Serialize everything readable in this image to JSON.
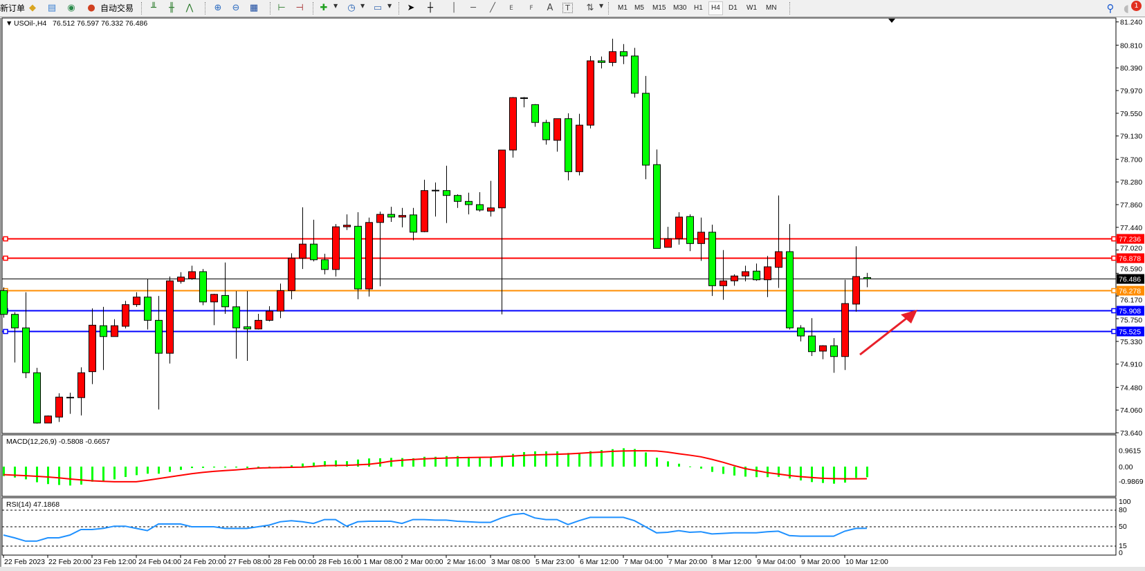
{
  "toolbar": {
    "new_order": "新订单",
    "auto_trade": "自动交易",
    "timeframes": [
      "M1",
      "M5",
      "M15",
      "M30",
      "H1",
      "H4",
      "D1",
      "W1",
      "MN"
    ],
    "active_timeframe": "H4",
    "notification_count": "1",
    "tools": {
      "text": "A",
      "fibo_e": "E",
      "fibo_f": "F",
      "label_t": "T"
    }
  },
  "chart": {
    "symbol_label": "USOil-,H4",
    "ohlc_label": "76.512 76.597 76.332 76.486",
    "price_ticks": [
      "81.240",
      "80.810",
      "80.390",
      "79.970",
      "79.550",
      "79.130",
      "78.700",
      "78.280",
      "77.860",
      "77.440",
      "77.020",
      "76.590",
      "76.170",
      "75.750",
      "75.330",
      "74.910",
      "74.480",
      "74.060",
      "73.640"
    ],
    "levels": [
      {
        "value": "77.236",
        "color": "#ff0000"
      },
      {
        "value": "76.878",
        "color": "#ff0000"
      },
      {
        "value": "76.486",
        "color": "#000000"
      },
      {
        "value": "76.278",
        "color": "#ff8c00"
      },
      {
        "value": "75.908",
        "color": "#0000ff"
      },
      {
        "value": "75.525",
        "color": "#0000ff"
      }
    ],
    "time_labels": [
      "22 Feb 2023",
      "22 Feb 20:00",
      "23 Feb 12:00",
      "24 Feb 04:00",
      "24 Feb 20:00",
      "27 Feb 08:00",
      "28 Feb 00:00",
      "28 Feb 16:00",
      "1 Mar 08:00",
      "2 Mar 00:00",
      "2 Mar 16:00",
      "3 Mar 08:00",
      "5 Mar 23:00",
      "6 Mar 12:00",
      "7 Mar 04:00",
      "7 Mar 20:00",
      "8 Mar 12:00",
      "9 Mar 04:00",
      "9 Mar 20:00",
      "10 Mar 12:00"
    ],
    "arrow_color": "#e8202a"
  },
  "chart_data": {
    "type": "candlestick",
    "ylim": [
      73.64,
      81.24
    ],
    "bull_color": "#ff0000",
    "bear_color": "#00ff00",
    "candles": [
      [
        76.27,
        76.33,
        75.77,
        75.83
      ],
      [
        75.83,
        75.87,
        74.94,
        75.58
      ],
      [
        75.58,
        76.24,
        74.65,
        74.75
      ],
      [
        74.75,
        74.84,
        73.81,
        73.82
      ],
      [
        73.82,
        73.96,
        73.82,
        73.95
      ],
      [
        73.93,
        74.37,
        73.84,
        74.3
      ],
      [
        74.29,
        74.38,
        73.99,
        74.29
      ],
      [
        74.29,
        74.85,
        73.96,
        74.75
      ],
      [
        74.77,
        75.94,
        74.54,
        75.63
      ],
      [
        75.62,
        75.97,
        74.8,
        75.42
      ],
      [
        75.42,
        75.74,
        75.42,
        75.62
      ],
      [
        75.61,
        76.08,
        75.57,
        76.01
      ],
      [
        76.01,
        76.24,
        75.97,
        76.15
      ],
      [
        76.15,
        76.49,
        75.55,
        75.72
      ],
      [
        75.72,
        76.17,
        74.07,
        75.11
      ],
      [
        75.11,
        76.53,
        74.92,
        76.45
      ],
      [
        76.44,
        76.61,
        76.4,
        76.52
      ],
      [
        76.49,
        76.73,
        76.47,
        76.62
      ],
      [
        76.62,
        76.67,
        76.0,
        76.06
      ],
      [
        76.06,
        76.21,
        75.63,
        76.2
      ],
      [
        76.18,
        76.79,
        75.84,
        75.97
      ],
      [
        75.97,
        76.26,
        75.01,
        75.58
      ],
      [
        75.6,
        76.26,
        74.97,
        75.56
      ],
      [
        75.56,
        75.84,
        75.55,
        75.72
      ],
      [
        75.72,
        75.98,
        75.7,
        75.89
      ],
      [
        75.89,
        76.4,
        75.76,
        76.27
      ],
      [
        76.27,
        76.96,
        76.11,
        76.87
      ],
      [
        76.87,
        77.81,
        76.67,
        77.13
      ],
      [
        77.13,
        77.58,
        76.81,
        76.84
      ],
      [
        76.84,
        76.95,
        76.57,
        76.66
      ],
      [
        76.66,
        77.5,
        76.53,
        77.45
      ],
      [
        77.45,
        77.68,
        77.39,
        77.48
      ],
      [
        77.46,
        77.72,
        76.11,
        76.3
      ],
      [
        76.3,
        77.62,
        76.16,
        77.53
      ],
      [
        77.53,
        77.73,
        76.35,
        77.68
      ],
      [
        77.68,
        77.82,
        77.54,
        77.63
      ],
      [
        77.63,
        77.8,
        77.44,
        77.66
      ],
      [
        77.67,
        77.8,
        77.2,
        77.35
      ],
      [
        77.36,
        78.32,
        77.35,
        78.12
      ],
      [
        78.12,
        78.27,
        77.64,
        78.12
      ],
      [
        78.12,
        78.58,
        77.52,
        78.03
      ],
      [
        78.03,
        78.05,
        77.8,
        77.92
      ],
      [
        77.92,
        78.08,
        77.68,
        77.86
      ],
      [
        77.86,
        78.09,
        77.73,
        77.76
      ],
      [
        77.74,
        78.3,
        77.64,
        77.8
      ],
      [
        77.8,
        78.87,
        75.83,
        78.87
      ],
      [
        78.87,
        79.85,
        78.73,
        79.84
      ],
      [
        79.83,
        79.85,
        79.66,
        79.83
      ],
      [
        79.71,
        79.72,
        79.3,
        79.38
      ],
      [
        79.38,
        79.43,
        78.97,
        79.06
      ],
      [
        79.05,
        79.45,
        78.84,
        79.45
      ],
      [
        79.45,
        79.55,
        78.31,
        78.47
      ],
      [
        78.47,
        79.54,
        78.4,
        79.33
      ],
      [
        79.33,
        80.61,
        79.27,
        80.52
      ],
      [
        80.52,
        80.6,
        80.38,
        80.49
      ],
      [
        80.49,
        80.93,
        80.42,
        80.69
      ],
      [
        80.69,
        80.83,
        80.46,
        80.61
      ],
      [
        80.61,
        80.76,
        79.84,
        79.92
      ],
      [
        79.92,
        80.24,
        78.33,
        78.59
      ],
      [
        78.6,
        78.88,
        77.05,
        77.05
      ],
      [
        77.07,
        77.45,
        77.07,
        77.23
      ],
      [
        77.23,
        77.72,
        77.12,
        77.63
      ],
      [
        77.64,
        77.68,
        77.0,
        77.14
      ],
      [
        77.14,
        77.62,
        76.82,
        77.35
      ],
      [
        77.35,
        77.49,
        76.17,
        76.36
      ],
      [
        76.36,
        77.02,
        76.1,
        76.45
      ],
      [
        76.45,
        76.57,
        76.36,
        76.54
      ],
      [
        76.54,
        76.73,
        76.44,
        76.62
      ],
      [
        76.63,
        76.77,
        76.45,
        76.47
      ],
      [
        76.47,
        76.91,
        76.15,
        76.71
      ],
      [
        76.7,
        78.03,
        76.32,
        76.99
      ],
      [
        76.99,
        77.5,
        75.55,
        75.58
      ],
      [
        75.58,
        75.63,
        75.33,
        75.43
      ],
      [
        75.43,
        75.76,
        75.06,
        75.14
      ],
      [
        75.15,
        75.26,
        75.0,
        75.25
      ],
      [
        75.25,
        75.39,
        74.75,
        75.05
      ],
      [
        75.05,
        76.47,
        74.8,
        76.03
      ],
      [
        76.02,
        77.09,
        75.88,
        76.53
      ],
      [
        76.512,
        76.597,
        76.332,
        76.486
      ]
    ]
  },
  "macd": {
    "label": "MACD(12,26,9) -0.5808 -0.6657",
    "ticks": [
      "0.9615",
      "0.00",
      "-0.9869"
    ],
    "histogram_color": "#00ff00",
    "signal_color": "#ff0000",
    "histogram": [
      -0.52,
      -0.6,
      -0.7,
      -0.86,
      -0.96,
      -1.01,
      -1.04,
      -0.99,
      -0.83,
      -0.78,
      -0.7,
      -0.57,
      -0.47,
      -0.39,
      -0.39,
      -0.29,
      -0.18,
      -0.08,
      -0.07,
      -0.05,
      -0.05,
      -0.05,
      -0.07,
      -0.07,
      -0.05,
      -0.03,
      0.07,
      0.17,
      0.22,
      0.3,
      0.34,
      0.3,
      0.39,
      0.45,
      0.46,
      0.48,
      0.47,
      0.46,
      0.54,
      0.54,
      0.58,
      0.58,
      0.54,
      0.49,
      0.51,
      0.58,
      0.7,
      0.8,
      0.84,
      0.84,
      0.84,
      0.75,
      0.71,
      0.85,
      0.91,
      0.96,
      1.01,
      0.97,
      0.78,
      0.49,
      0.29,
      0.16,
      0.01,
      -0.11,
      -0.29,
      -0.4,
      -0.49,
      -0.55,
      -0.58,
      -0.58,
      -0.56,
      -0.65,
      -0.76,
      -0.85,
      -0.9,
      -0.94,
      -0.88,
      -0.62,
      -0.5808
    ],
    "signal": [
      -0.44,
      -0.47,
      -0.5,
      -0.53,
      -0.57,
      -0.62,
      -0.68,
      -0.73,
      -0.78,
      -0.81,
      -0.83,
      -0.83,
      -0.83,
      -0.75,
      -0.66,
      -0.57,
      -0.48,
      -0.39,
      -0.32,
      -0.26,
      -0.22,
      -0.18,
      -0.13,
      -0.08,
      -0.06,
      -0.05,
      -0.04,
      -0.03,
      0.01,
      0.05,
      0.06,
      0.07,
      0.1,
      0.13,
      0.2,
      0.3,
      0.35,
      0.39,
      0.43,
      0.45,
      0.47,
      0.49,
      0.5,
      0.51,
      0.52,
      0.55,
      0.58,
      0.62,
      0.64,
      0.66,
      0.68,
      0.7,
      0.73,
      0.77,
      0.8,
      0.84,
      0.86,
      0.87,
      0.87,
      0.86,
      0.8,
      0.71,
      0.63,
      0.54,
      0.4,
      0.24,
      0.06,
      -0.11,
      -0.22,
      -0.33,
      -0.41,
      -0.49,
      -0.55,
      -0.6,
      -0.64,
      -0.66,
      -0.67,
      -0.67,
      -0.6657
    ]
  },
  "rsi": {
    "label": "RSI(14) 47.1868",
    "ticks": [
      "100",
      "80",
      "50",
      "15",
      "0"
    ],
    "levels": [
      80,
      50,
      15
    ],
    "line_color": "#1e90ff",
    "values": [
      35,
      30,
      24,
      24,
      30,
      30,
      35,
      45,
      45,
      47,
      51,
      51,
      47,
      43,
      55,
      55,
      55,
      50,
      50,
      50,
      47,
      47,
      47,
      50,
      53,
      59,
      61,
      59,
      56,
      63,
      63,
      51,
      59,
      60,
      60,
      60,
      56,
      63,
      63,
      62,
      62,
      60,
      59,
      58,
      58,
      66,
      72,
      74,
      66,
      63,
      63,
      54,
      61,
      67,
      67,
      67,
      67,
      61,
      50,
      39,
      40,
      43,
      40,
      41,
      37,
      38,
      39,
      39,
      39,
      41,
      42,
      34,
      33,
      33,
      33,
      33,
      42,
      47,
      47.1868
    ]
  }
}
